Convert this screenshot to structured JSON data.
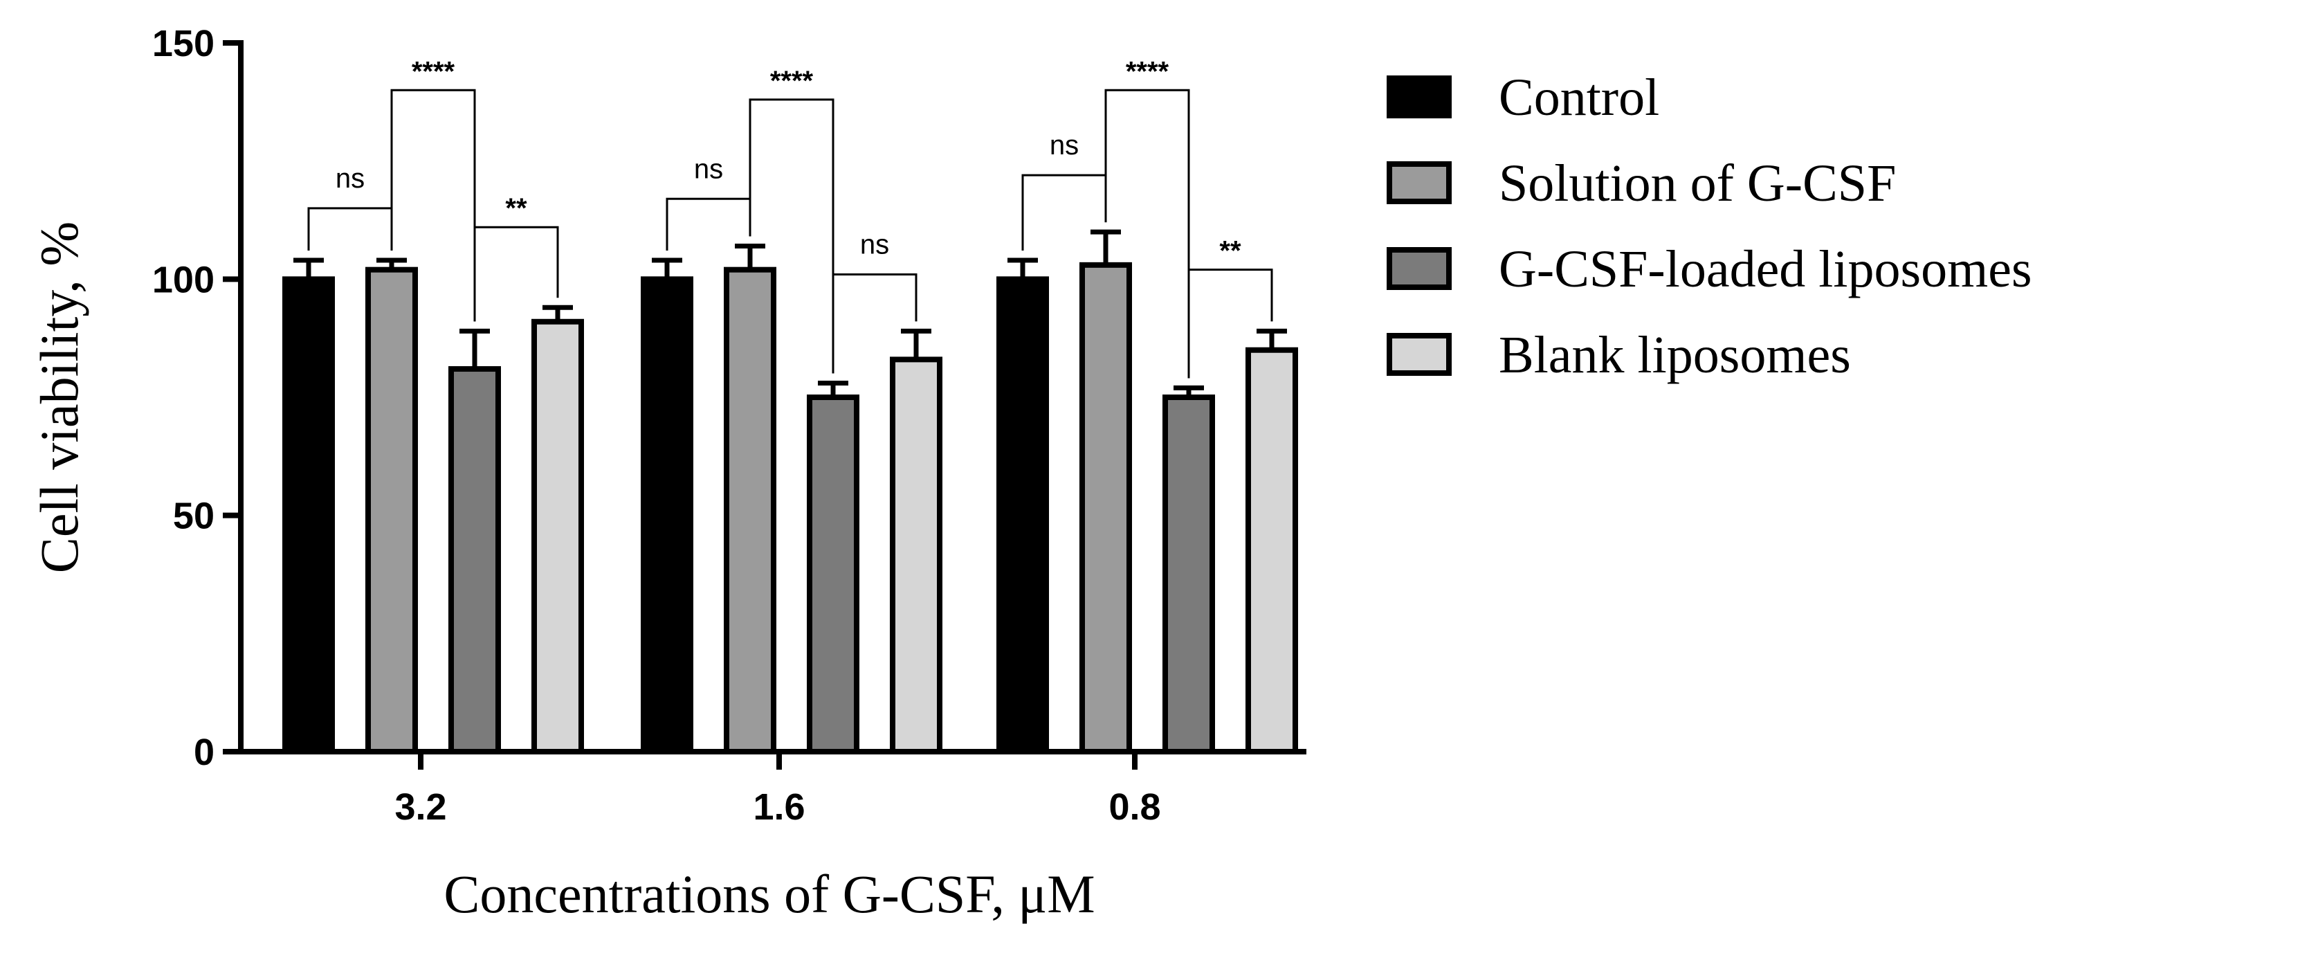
{
  "chart_data": {
    "type": "bar",
    "title": "",
    "xlabel": "Concentrations of G-CSF, μM",
    "ylabel": "Cell viability, %",
    "ylim": [
      0,
      150
    ],
    "yticks": [
      "0",
      "50",
      "100",
      "150"
    ],
    "categories": [
      "3.2",
      "1.6",
      "0.8"
    ],
    "legend_position": "right",
    "series": [
      {
        "name": "Control",
        "color": "#000000",
        "values": [
          100,
          100,
          100
        ],
        "errors": [
          4,
          4,
          4
        ]
      },
      {
        "name": "Solution of G-CSF",
        "color": "#9b9b9b",
        "values": [
          102,
          102,
          103
        ],
        "errors": [
          2,
          5,
          7
        ]
      },
      {
        "name": "G-CSF-loaded liposomes",
        "color": "#7b7b7b",
        "values": [
          81,
          75,
          75
        ],
        "errors": [
          8,
          3,
          2
        ]
      },
      {
        "name": "Blank liposomes",
        "color": "#d6d6d6",
        "values": [
          91,
          83,
          85
        ],
        "errors": [
          3,
          6,
          4
        ]
      }
    ],
    "significance": [
      {
        "category": 0,
        "from": 0,
        "to": 1,
        "level": 115,
        "label": "ns"
      },
      {
        "category": 0,
        "from": 1,
        "to": 2,
        "level": 140,
        "label": "****"
      },
      {
        "category": 0,
        "from": 2,
        "to": 3,
        "level": 111,
        "label": "**"
      },
      {
        "category": 1,
        "from": 0,
        "to": 1,
        "level": 117,
        "label": "ns"
      },
      {
        "category": 1,
        "from": 1,
        "to": 2,
        "level": 138,
        "label": "****"
      },
      {
        "category": 1,
        "from": 2,
        "to": 3,
        "level": 101,
        "label": "ns"
      },
      {
        "category": 2,
        "from": 0,
        "to": 1,
        "level": 122,
        "label": "ns"
      },
      {
        "category": 2,
        "from": 1,
        "to": 2,
        "level": 140,
        "label": "****"
      },
      {
        "category": 2,
        "from": 2,
        "to": 3,
        "level": 102,
        "label": "**"
      }
    ]
  }
}
